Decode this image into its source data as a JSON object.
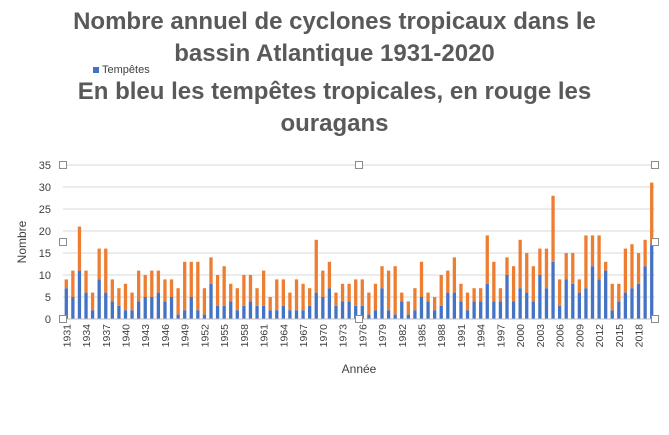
{
  "chart_data": {
    "type": "bar",
    "stacked": true,
    "title_lines": [
      "Nombre annuel de cyclones tropicaux  dans le",
      "bassin Atlantique 1931-2020",
      "En bleu les tempêtes tropicales, en rouge les",
      "ouragans"
    ],
    "xlabel": "Année",
    "ylabel": "Nombre",
    "ylim": [
      0,
      35
    ],
    "yticks": [
      0,
      5,
      10,
      15,
      20,
      25,
      30,
      35
    ],
    "x_tick_labels": [
      "1931",
      "1934",
      "1937",
      "1940",
      "1943",
      "1946",
      "1949",
      "1952",
      "1955",
      "1958",
      "1961",
      "1964",
      "1967",
      "1970",
      "1973",
      "1976",
      "1979",
      "1982",
      "1985",
      "1988",
      "1991",
      "1994",
      "1997",
      "2000",
      "2003",
      "2006",
      "2009",
      "2012",
      "2015",
      "2018"
    ],
    "grid": true,
    "legend": {
      "position": "top-left",
      "entries": [
        "Tempêtes"
      ]
    },
    "colors": {
      "Tempêtes": "#4472c4",
      "Ouragans": "#ed7d31"
    },
    "years": [
      1931,
      1932,
      1933,
      1934,
      1935,
      1936,
      1937,
      1938,
      1939,
      1940,
      1941,
      1942,
      1943,
      1944,
      1945,
      1946,
      1947,
      1948,
      1949,
      1950,
      1951,
      1952,
      1953,
      1954,
      1955,
      1956,
      1957,
      1958,
      1959,
      1960,
      1961,
      1962,
      1963,
      1964,
      1965,
      1966,
      1967,
      1968,
      1969,
      1970,
      1971,
      1972,
      1973,
      1974,
      1975,
      1976,
      1977,
      1978,
      1979,
      1980,
      1981,
      1982,
      1983,
      1984,
      1985,
      1986,
      1987,
      1988,
      1989,
      1990,
      1991,
      1992,
      1993,
      1994,
      1995,
      1996,
      1997,
      1998,
      1999,
      2000,
      2001,
      2002,
      2003,
      2004,
      2005,
      2006,
      2007,
      2008,
      2009,
      2010,
      2011,
      2012,
      2013,
      2014,
      2015,
      2016,
      2017,
      2018,
      2019,
      2020
    ],
    "series": [
      {
        "name": "Tempêtes",
        "values": [
          7,
          5,
          11,
          6,
          2,
          9,
          6,
          4,
          3,
          2,
          2,
          4,
          5,
          5,
          6,
          4,
          5,
          1,
          2,
          5,
          2,
          1,
          8,
          3,
          3,
          4,
          2,
          3,
          4,
          3,
          3,
          2,
          2,
          3,
          2,
          2,
          2,
          3,
          6,
          5,
          7,
          3,
          4,
          4,
          3,
          3,
          1,
          2,
          7,
          2,
          1,
          4,
          1,
          2,
          5,
          4,
          2,
          3,
          6,
          6,
          4,
          2,
          4,
          4,
          8,
          4,
          4,
          10,
          4,
          7,
          6,
          4,
          10,
          7,
          13,
          3,
          9,
          8,
          6,
          7,
          12,
          9,
          11,
          2,
          4,
          6,
          7,
          8,
          12,
          17
        ]
      },
      {
        "name": "Ouragans",
        "values": [
          2,
          6,
          10,
          5,
          4,
          7,
          10,
          5,
          4,
          6,
          4,
          7,
          5,
          6,
          5,
          5,
          4,
          6,
          11,
          8,
          11,
          6,
          6,
          7,
          9,
          4,
          5,
          7,
          6,
          4,
          8,
          3,
          7,
          6,
          4,
          7,
          6,
          4,
          12,
          6,
          6,
          3,
          4,
          4,
          6,
          6,
          5,
          6,
          5,
          9,
          11,
          2,
          3,
          5,
          8,
          2,
          3,
          7,
          5,
          8,
          4,
          4,
          3,
          3,
          11,
          9,
          3,
          4,
          8,
          11,
          9,
          8,
          6,
          9,
          15,
          6,
          6,
          7,
          3,
          12,
          7,
          10,
          2,
          6,
          4,
          10,
          10,
          7,
          6,
          14
        ]
      }
    ]
  }
}
